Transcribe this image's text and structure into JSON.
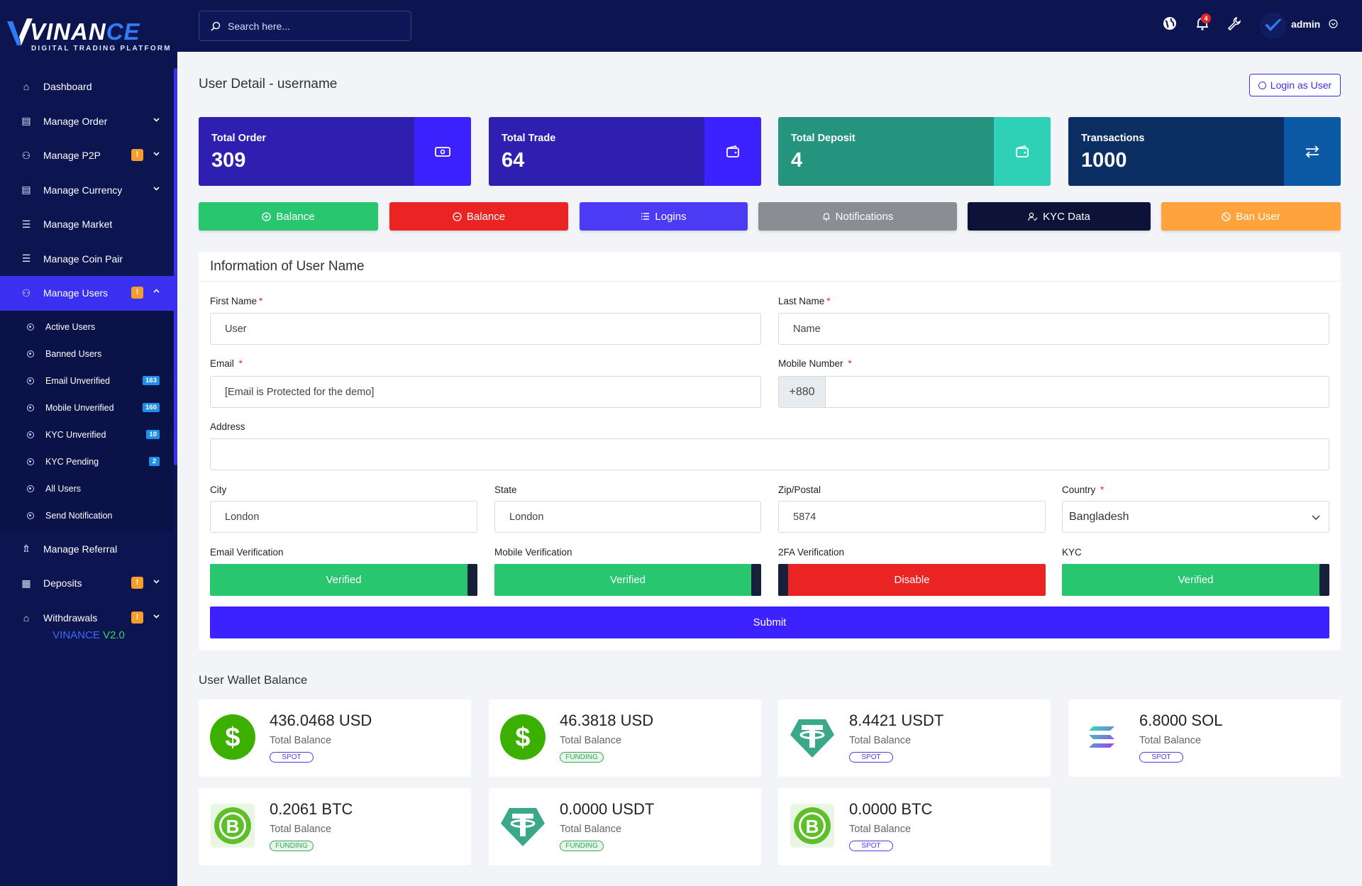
{
  "brand": {
    "name_a": "VINAN",
    "name_b": "CE",
    "tagline": "DIGITAL TRADING PLATFORM",
    "version_a": "VINANCE",
    "version_b": "V2.0"
  },
  "search": {
    "placeholder": "Search here..."
  },
  "topbar": {
    "notification_count": "4",
    "admin_name": "admin"
  },
  "sidebar": {
    "items": [
      {
        "label": "Dashboard",
        "icon": "home-icon"
      },
      {
        "label": "Manage Order",
        "icon": "database-icon",
        "chevron": true
      },
      {
        "label": "Manage P2P",
        "icon": "users-icon",
        "chevron": true,
        "warn": "!"
      },
      {
        "label": "Manage Currency",
        "icon": "database-icon",
        "chevron": true
      },
      {
        "label": "Manage Market",
        "icon": "list-icon"
      },
      {
        "label": "Manage Coin Pair",
        "icon": "list-icon"
      },
      {
        "label": "Manage Users",
        "icon": "users-icon",
        "chevron": true,
        "warn": "!",
        "active": true
      }
    ],
    "sub_items": [
      {
        "label": "Active Users",
        "badge": ""
      },
      {
        "label": "Banned Users",
        "badge": ""
      },
      {
        "label": "Email Unverified",
        "badge": "163"
      },
      {
        "label": "Mobile Unverified",
        "badge": "160"
      },
      {
        "label": "KYC Unverified",
        "badge": "10"
      },
      {
        "label": "KYC Pending",
        "badge": "2"
      },
      {
        "label": "All Users",
        "badge": ""
      },
      {
        "label": "Send Notification",
        "badge": ""
      }
    ],
    "items_after": [
      {
        "label": "Manage Referral",
        "icon": "referral-icon"
      },
      {
        "label": "Deposits",
        "icon": "deposit-icon",
        "chevron": true,
        "warn": "!"
      },
      {
        "label": "Withdrawals",
        "icon": "bank-icon",
        "chevron": true,
        "warn": "!"
      }
    ]
  },
  "page": {
    "title": "User Detail - username",
    "login_as": "Login as User"
  },
  "stats": [
    {
      "label": "Total Order",
      "value": "309",
      "main": "#2e1fb0",
      "side": "#3b22ff",
      "icon": "money-icon"
    },
    {
      "label": "Total Trade",
      "value": "64",
      "main": "#2e1fb0",
      "side": "#3b22ff",
      "icon": "wallet-icon"
    },
    {
      "label": "Total Deposit",
      "value": "4",
      "main": "#25947f",
      "side": "#2ed1b6",
      "icon": "wallet-icon"
    },
    {
      "label": "Transactions",
      "value": "1000",
      "main": "#0b2f62",
      "side": "#0c5aa6",
      "icon": "exchange-icon"
    }
  ],
  "actions": [
    {
      "label": "Balance",
      "color": "#28c76f",
      "icon": "plus-circle-icon"
    },
    {
      "label": "Balance",
      "color": "#ea2323",
      "icon": "minus-circle-icon"
    },
    {
      "label": "Logins",
      "color": "#4b3bf5",
      "icon": "list-icon"
    },
    {
      "label": "Notifications",
      "color": "#8a8d93",
      "icon": "bell-icon"
    },
    {
      "label": "KYC Data",
      "color": "#0c1238",
      "icon": "user-check-icon"
    },
    {
      "label": "Ban User",
      "color": "#ffa33c",
      "icon": "ban-icon"
    }
  ],
  "form": {
    "heading": "Information of User Name",
    "first_name": {
      "label": "First Name",
      "value": "User"
    },
    "last_name": {
      "label": "Last Name",
      "value": "Name"
    },
    "email": {
      "label": "Email",
      "value": "[Email is Protected for the demo]"
    },
    "mobile": {
      "label": "Mobile Number",
      "prefix": "+880",
      "value": ""
    },
    "address": {
      "label": "Address",
      "value": ""
    },
    "city": {
      "label": "City",
      "value": "London"
    },
    "state": {
      "label": "State",
      "value": "London"
    },
    "zip": {
      "label": "Zip/Postal",
      "value": "5874"
    },
    "country": {
      "label": "Country",
      "value": "Bangladesh"
    },
    "toggles": [
      {
        "label": "Email Verification",
        "value": "Verified",
        "state": "on"
      },
      {
        "label": "Mobile Verification",
        "value": "Verified",
        "state": "on"
      },
      {
        "label": "2FA Verification",
        "value": "Disable",
        "state": "off"
      },
      {
        "label": "KYC",
        "value": "Verified",
        "state": "on"
      }
    ],
    "submit": "Submit"
  },
  "wallet": {
    "title": "User Wallet Balance",
    "total_label": "Total Balance",
    "items": [
      {
        "amount": "436.0468 USD",
        "type": "SPOT",
        "coin": "usd"
      },
      {
        "amount": "46.3818 USD",
        "type": "FUNDING",
        "coin": "usd"
      },
      {
        "amount": "8.4421 USDT",
        "type": "SPOT",
        "coin": "usdt"
      },
      {
        "amount": "6.8000 SOL",
        "type": "SPOT",
        "coin": "sol"
      },
      {
        "amount": "0.2061 BTC",
        "type": "FUNDING",
        "coin": "bch"
      },
      {
        "amount": "0.0000 USDT",
        "type": "FUNDING",
        "coin": "usdt"
      },
      {
        "amount": "0.0000 BTC",
        "type": "SPOT",
        "coin": "bch"
      }
    ]
  }
}
